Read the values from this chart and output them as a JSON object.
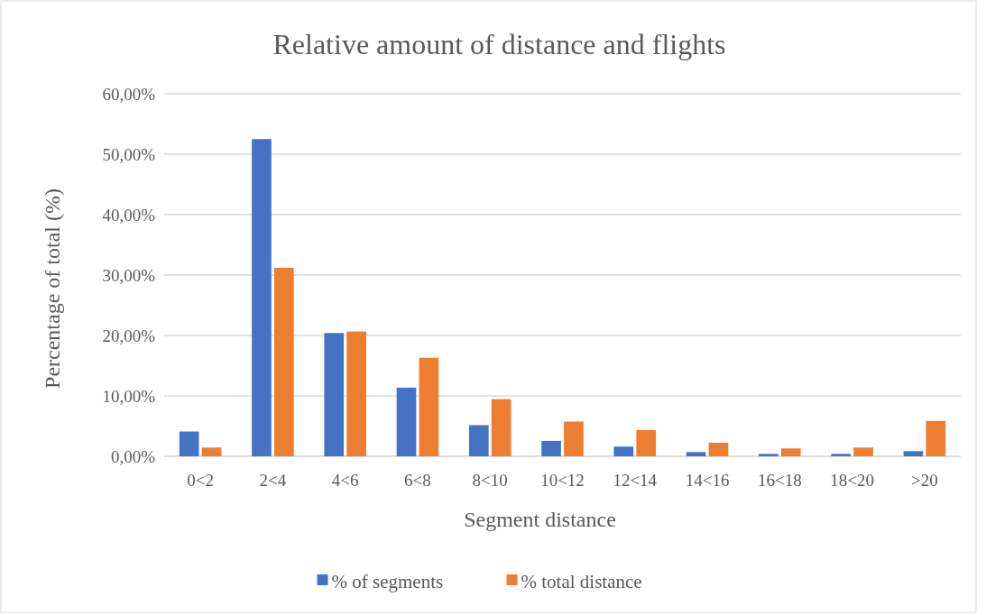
{
  "chart_data": {
    "type": "bar",
    "title": "Relative amount of distance and flights",
    "xlabel": "Segment distance",
    "ylabel": "Percentage of total (%)",
    "categories": [
      "0<2",
      "2<4",
      "4<6",
      "6<8",
      "8<10",
      "10<12",
      "12<14",
      "14<16",
      "16<18",
      "18<20",
      ">20"
    ],
    "series": [
      {
        "name": "% of segments",
        "color": "#4472c4",
        "values": [
          4.1,
          52.5,
          20.4,
          11.35,
          5.15,
          2.55,
          1.6,
          0.7,
          0.4,
          0.4,
          0.85
        ]
      },
      {
        "name": "% total distance",
        "color": "#ed7d31",
        "values": [
          1.45,
          31.2,
          20.65,
          16.3,
          9.45,
          5.75,
          4.35,
          2.25,
          1.3,
          1.45,
          5.85
        ]
      }
    ],
    "ylim": [
      0,
      60
    ],
    "yticks": [
      {
        "value": 0,
        "label": "0,00%"
      },
      {
        "value": 10,
        "label": "10,00%"
      },
      {
        "value": 20,
        "label": "20,00%"
      },
      {
        "value": 30,
        "label": "30,00%"
      },
      {
        "value": 40,
        "label": "40,00%"
      },
      {
        "value": 50,
        "label": "50,00%"
      },
      {
        "value": 60,
        "label": "60,00%"
      }
    ],
    "grid": "y",
    "legend": "bottom"
  }
}
